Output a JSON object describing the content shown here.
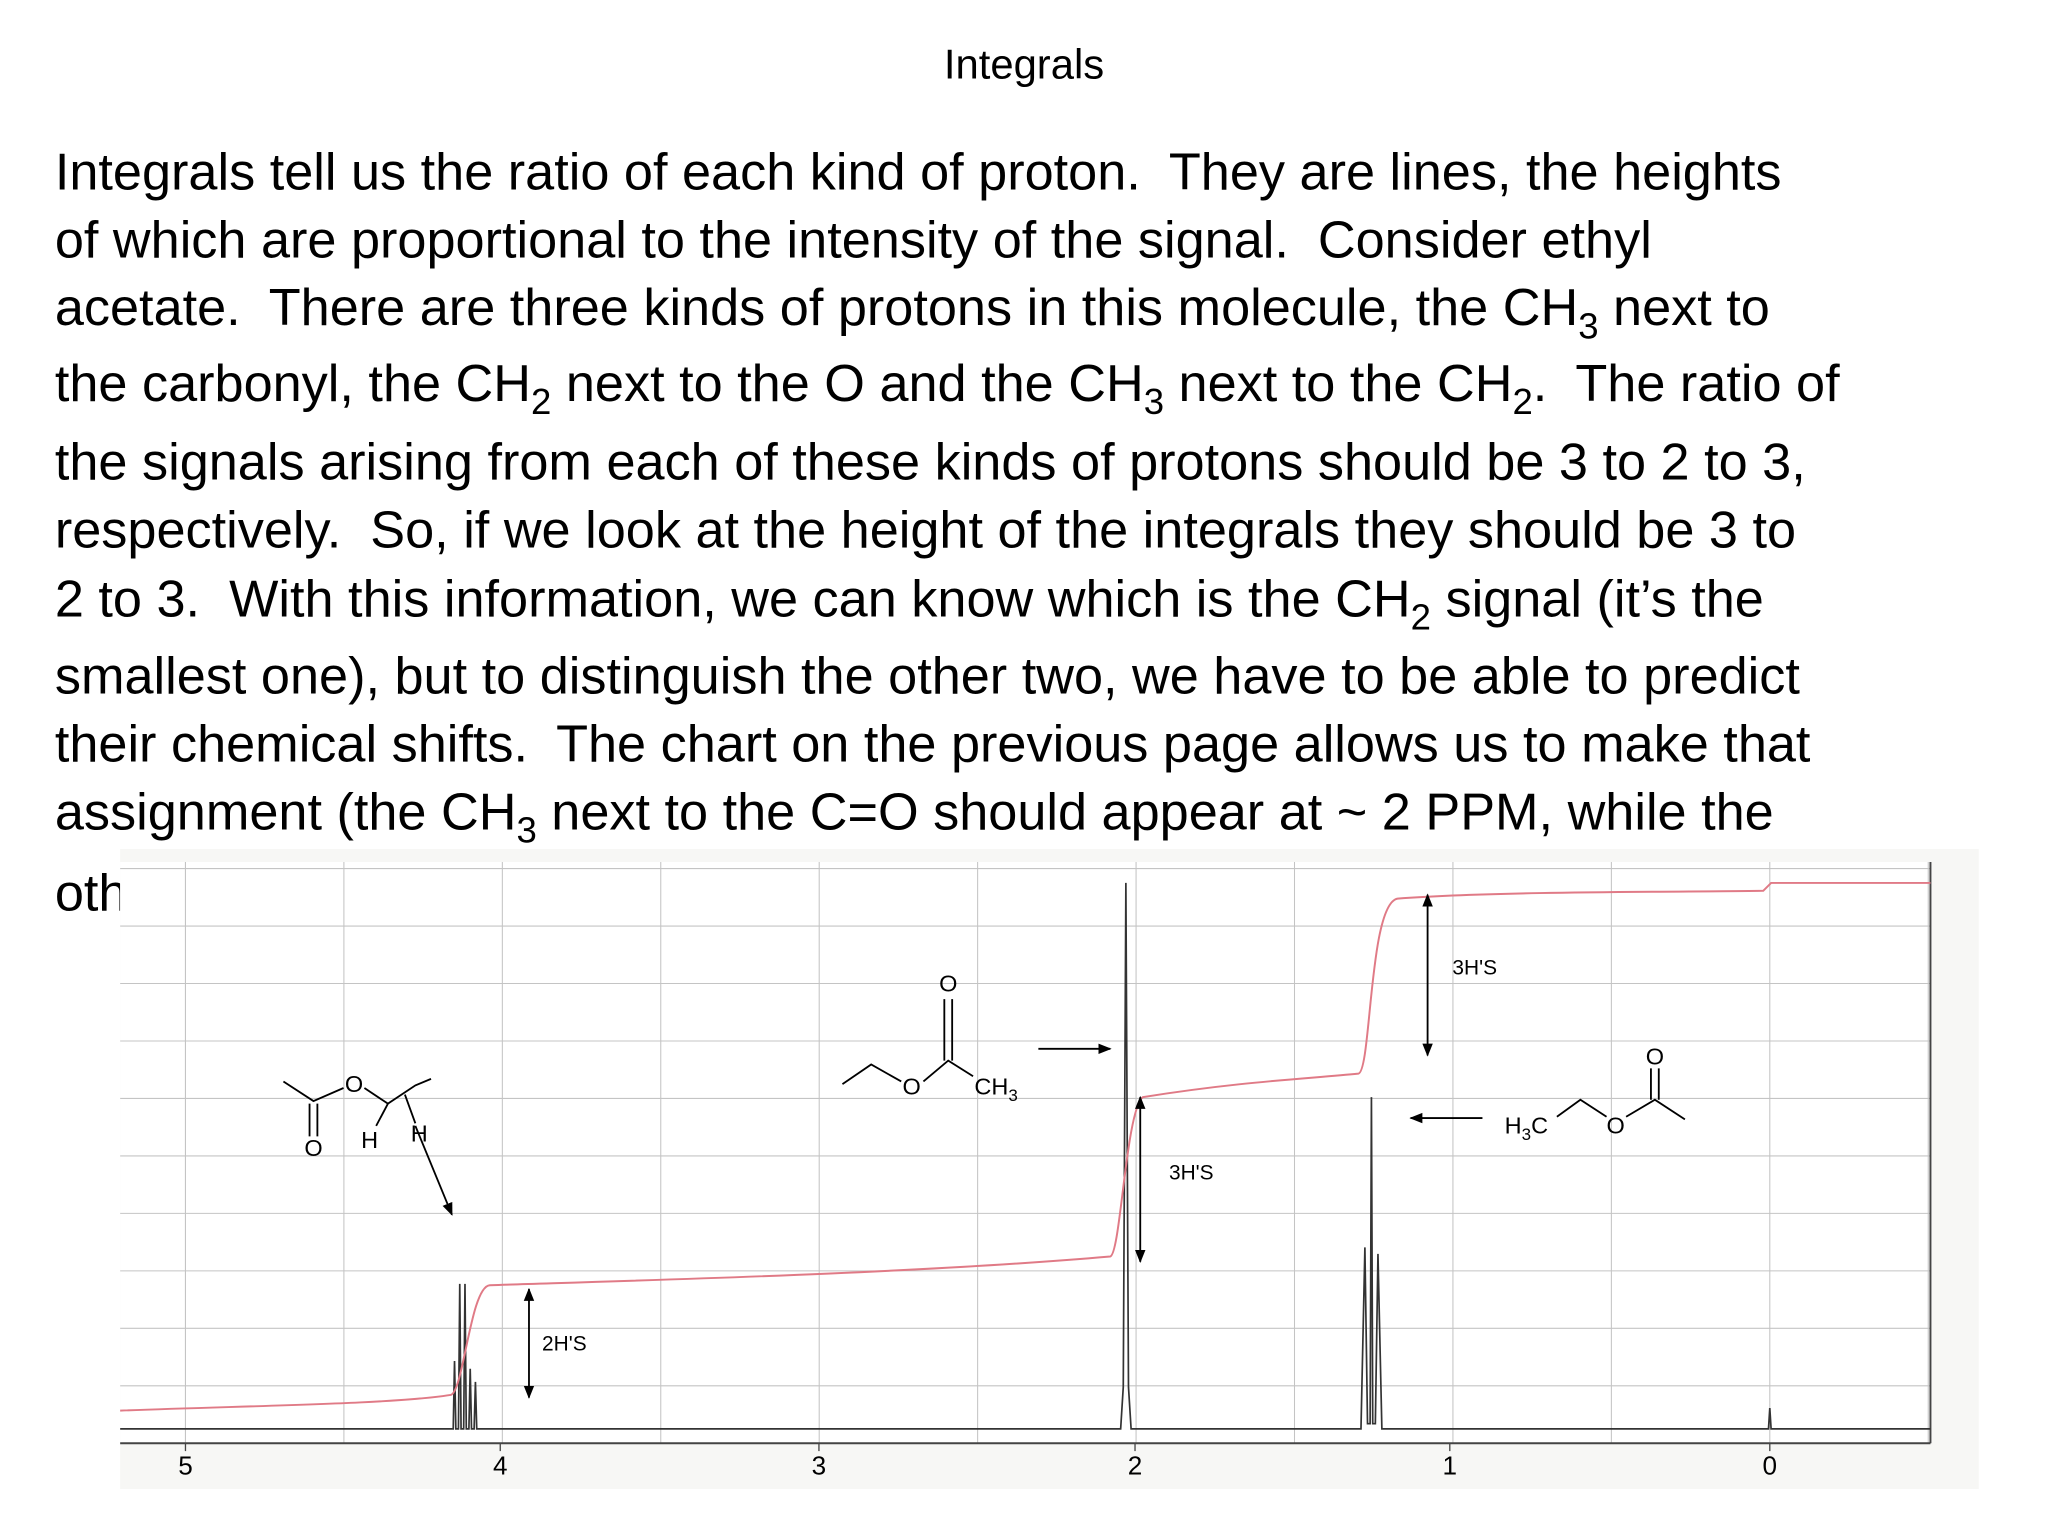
{
  "title": "Integrals",
  "paragraph": [
    [
      "Integrals tell us the ratio of each kind of proton.  They are lines, the heights"
    ],
    [
      "of which are proportional to the intensity of the signal.  Consider ethyl"
    ],
    [
      "acetate.  There are three kinds of protons in this molecule, the CH",
      {
        "sub": "3"
      },
      " next to"
    ],
    [
      "the carbonyl, the CH",
      {
        "sub": "2"
      },
      " next to the O and the CH",
      {
        "sub": "3"
      },
      " next to the CH",
      {
        "sub": "2"
      },
      ".  The ratio of"
    ],
    [
      "the signals arising from each of these kinds of protons should be 3 to 2 to 3,"
    ],
    [
      "respectively.  So, if we look at the height of the integrals they should be 3 to"
    ],
    [
      "2 to 3.  With this information, we can know which is the CH",
      {
        "sub": "2"
      },
      " signal (it’s the"
    ],
    [
      "smallest one), but to distinguish the other two, we have to be able to predict"
    ],
    [
      "their chemical shifts.  The chart on the previous page allows us to make that"
    ],
    [
      "assignment (the CH",
      {
        "sub": "3"
      },
      " next to the C=O should appear at ~ 2 PPM, while the"
    ],
    [
      "oth"
    ]
  ],
  "spectrum": {
    "axis_labels": [
      "5",
      "4",
      "3",
      "2",
      "1",
      "0"
    ],
    "integral_labels": [
      "2H'S",
      "3H'S",
      "3H'S"
    ],
    "structures": [
      {
        "atoms": [
          [
            "O"
          ],
          [
            "O"
          ],
          [
            "H"
          ],
          [
            "H"
          ]
        ]
      },
      {
        "atoms": [
          [
            "O"
          ],
          [
            "O"
          ],
          [
            "CH",
            {
              "sub": "3"
            }
          ]
        ]
      },
      {
        "atoms": [
          [
            "H",
            {
              "sub": "3"
            },
            "C"
          ],
          [
            "O"
          ],
          [
            "O"
          ]
        ]
      }
    ]
  }
}
